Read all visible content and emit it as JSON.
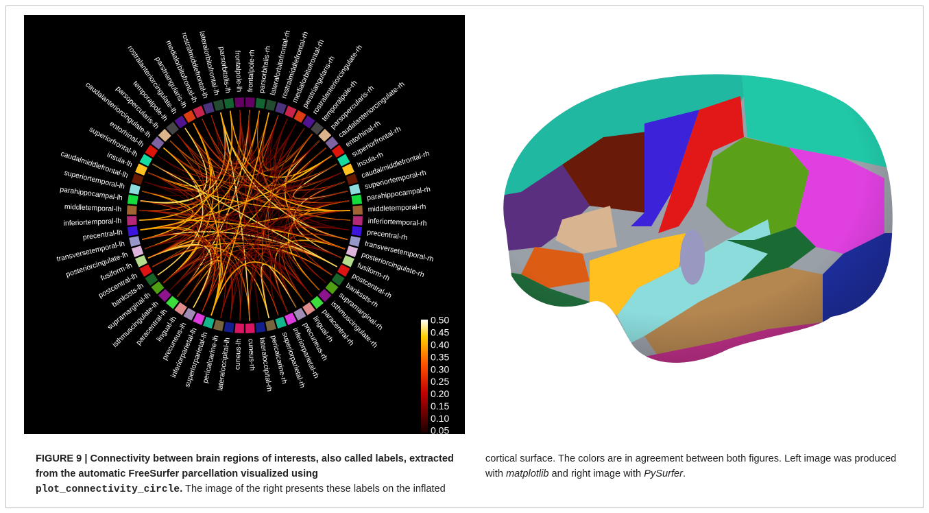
{
  "figure": {
    "circle_labels": [
      "frontalpole-rh",
      "parsorbitalis-rh",
      "lateralorbitofrontal-rh",
      "rostralmiddlefrontal-rh",
      "medialorbitofrontal-rh",
      "parstriangularis-rh",
      "rostralanteriorcingulate-rh",
      "temporalpole-rh",
      "parsopercularis-rh",
      "caudalanteriorcingulate-rh",
      "entorhinal-rh",
      "superiorfrontal-rh",
      "insula-rh",
      "caudalmiddlefrontal-rh",
      "superiortemporal-rh",
      "parahippocampal-rh",
      "middletemporal-rh",
      "inferiortemporal-rh",
      "precentral-rh",
      "transversetemporal-rh",
      "posteriorcingulate-rh",
      "fusiform-rh",
      "postcentral-rh",
      "bankssts-rh",
      "supramarginal-rh",
      "isthmuscingulate-rh",
      "paracentral-rh",
      "lingual-rh",
      "precuneus-rh",
      "inferiorparietal-rh",
      "superiorparietal-rh",
      "pericalcarine-rh",
      "lateraloccipital-rh",
      "cuneus-rh",
      "cuneus-lh",
      "lateraloccipital-lh",
      "pericalcarine-lh",
      "superiorparietal-lh",
      "inferiorparietal-lh",
      "precuneus-lh",
      "lingual-lh",
      "paracentral-lh",
      "isthmuscingulate-lh",
      "supramarginal-lh",
      "bankssts-lh",
      "postcentral-lh",
      "fusiform-lh",
      "posteriorcingulate-lh",
      "transversetemporal-lh",
      "precentral-lh",
      "inferiortemporal-lh",
      "middletemporal-lh",
      "parahippocampal-lh",
      "superiortemporal-lh",
      "caudalmiddlefrontal-lh",
      "insula-lh",
      "superiorfrontal-lh",
      "entorhinal-lh",
      "caudalanteriorcingulate-lh",
      "parsopercularis-lh",
      "temporalpole-lh",
      "rostralanteriorcingulate-lh",
      "parstriangularis-lh",
      "medialorbitofrontal-lh",
      "rostralmiddlefrontal-lh",
      "lateralorbitofrontal-lh",
      "parsorbitalis-lh",
      "frontalpole-lh"
    ],
    "colorbar_ticks": [
      "0.50",
      "0.45",
      "0.40",
      "0.35",
      "0.30",
      "0.25",
      "0.20",
      "0.15",
      "0.10",
      "0.05"
    ]
  },
  "caption": {
    "label": "FIGURE 9 |",
    "bold_text": "Connectivity between brain regions of interests, also called labels, extracted from the automatic FreeSurfer parcellation visualized using",
    "code": "plot_connectivity_circle",
    "bold_end": ".",
    "text": "The image of the right presents these labels on the inflated cortical surface. The colors are in agreement between both figures. Left image was produced with",
    "em1": "matplotlib",
    "text2": "and right image with",
    "em2": "PySurfer",
    "end": "."
  }
}
